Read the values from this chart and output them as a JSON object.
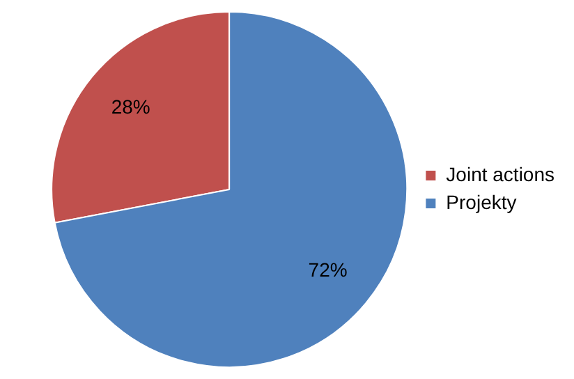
{
  "chart_data": {
    "type": "pie",
    "categories": [
      "Joint actions",
      "Projekty"
    ],
    "values": [
      28,
      72
    ],
    "colors": [
      "#c0504d",
      "#4f81bd"
    ],
    "value_labels": [
      "28%",
      "72%"
    ],
    "legend": "right"
  }
}
